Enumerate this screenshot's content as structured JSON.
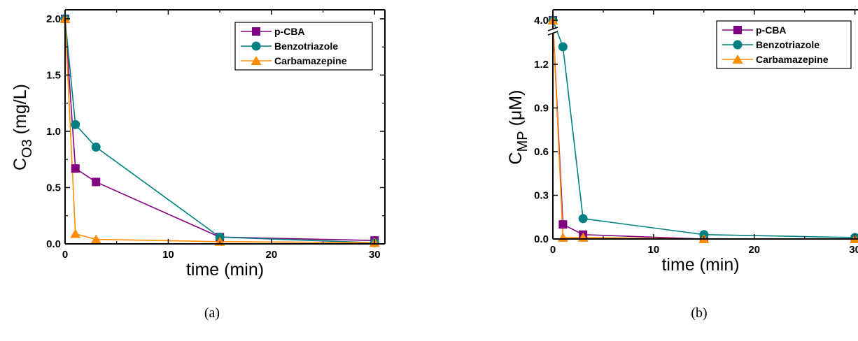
{
  "chart_data": [
    {
      "type": "line",
      "caption": "(a)",
      "xlabel": "time (min)",
      "ylabel_main": "C",
      "ylabel_sub": "O3",
      "ylabel_tail": " (mg/L)",
      "xlim": [
        0,
        31
      ],
      "ylim": [
        0,
        2.08
      ],
      "xticks": [
        0,
        10,
        20,
        30
      ],
      "yticks": [
        0.0,
        0.5,
        1.0,
        1.5,
        2.0
      ],
      "yticklabels": [
        "0.0",
        "0.5",
        "1.0",
        "1.5",
        "2.0"
      ],
      "legend_position": "top-right",
      "series": [
        {
          "name": "p-CBA",
          "color": "#800080",
          "marker": "square",
          "x": [
            0,
            1,
            3,
            15,
            30
          ],
          "y": [
            2.0,
            0.67,
            0.55,
            0.06,
            0.03
          ]
        },
        {
          "name": "Benzotriazole",
          "color": "#008080",
          "marker": "circle",
          "x": [
            0,
            1,
            3,
            15,
            30
          ],
          "y": [
            2.0,
            1.06,
            0.86,
            0.06,
            0.01
          ]
        },
        {
          "name": "Carbamazepine",
          "color": "#ff8c00",
          "marker": "triangle",
          "x": [
            0,
            1,
            3,
            15,
            30
          ],
          "y": [
            2.0,
            0.09,
            0.04,
            0.02,
            0.01
          ]
        }
      ]
    },
    {
      "type": "line",
      "caption": "(b)",
      "xlabel": "time (min)",
      "ylabel_main": "C",
      "ylabel_sub": "MP",
      "ylabel_tail": " (μM)",
      "xlim": [
        0,
        31
      ],
      "axis_break_above": 1.45,
      "ylim": [
        0,
        4.1
      ],
      "xticks": [
        0,
        10,
        20,
        30
      ],
      "yticks": [
        0.0,
        0.3,
        0.6,
        0.9,
        1.2,
        4.0
      ],
      "yticklabels": [
        "0.0",
        "0.3",
        "0.6",
        "0.9",
        "1.2",
        "4.0"
      ],
      "legend_position": "top-right",
      "series": [
        {
          "name": "p-CBA",
          "color": "#800080",
          "marker": "square",
          "x": [
            0,
            1,
            3,
            15,
            30
          ],
          "y": [
            4.0,
            0.1,
            0.03,
            0.0,
            0.0
          ]
        },
        {
          "name": "Benzotriazole",
          "color": "#008080",
          "marker": "circle",
          "x": [
            0,
            1,
            3,
            15,
            30
          ],
          "y": [
            4.0,
            1.32,
            0.14,
            0.03,
            0.01
          ]
        },
        {
          "name": "Carbamazepine",
          "color": "#ff8c00",
          "marker": "triangle",
          "x": [
            0,
            1,
            3,
            15,
            30
          ],
          "y": [
            4.0,
            0.01,
            0.01,
            0.0,
            0.0
          ]
        }
      ]
    }
  ]
}
